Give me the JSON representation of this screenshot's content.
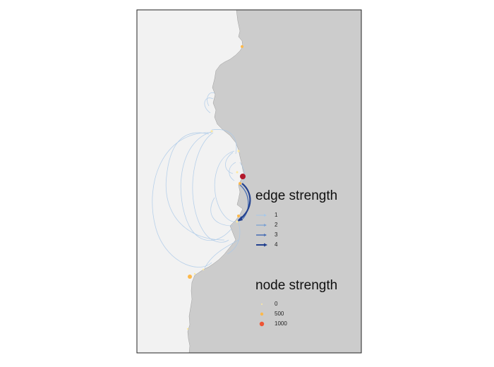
{
  "edge_legend": {
    "title": "edge strength",
    "items": [
      {
        "label": "1",
        "value": 1,
        "color": "#a9c8e8"
      },
      {
        "label": "2",
        "value": 2,
        "color": "#7fa3d2"
      },
      {
        "label": "3",
        "value": 3,
        "color": "#4f73b5"
      },
      {
        "label": "4",
        "value": 4,
        "color": "#23418f"
      }
    ]
  },
  "node_legend": {
    "title": "node strength",
    "items": [
      {
        "label": "0",
        "value": 0,
        "color": "#fde9a0"
      },
      {
        "label": "500",
        "value": 500,
        "color": "#fdb94b"
      },
      {
        "label": "1000",
        "value": 1000,
        "color": "#ee5535"
      }
    ]
  },
  "colors": {
    "ocean": "#f2f2f2",
    "land": "#cccccc",
    "frame": "#222222",
    "node_max": "#b2182b"
  }
}
